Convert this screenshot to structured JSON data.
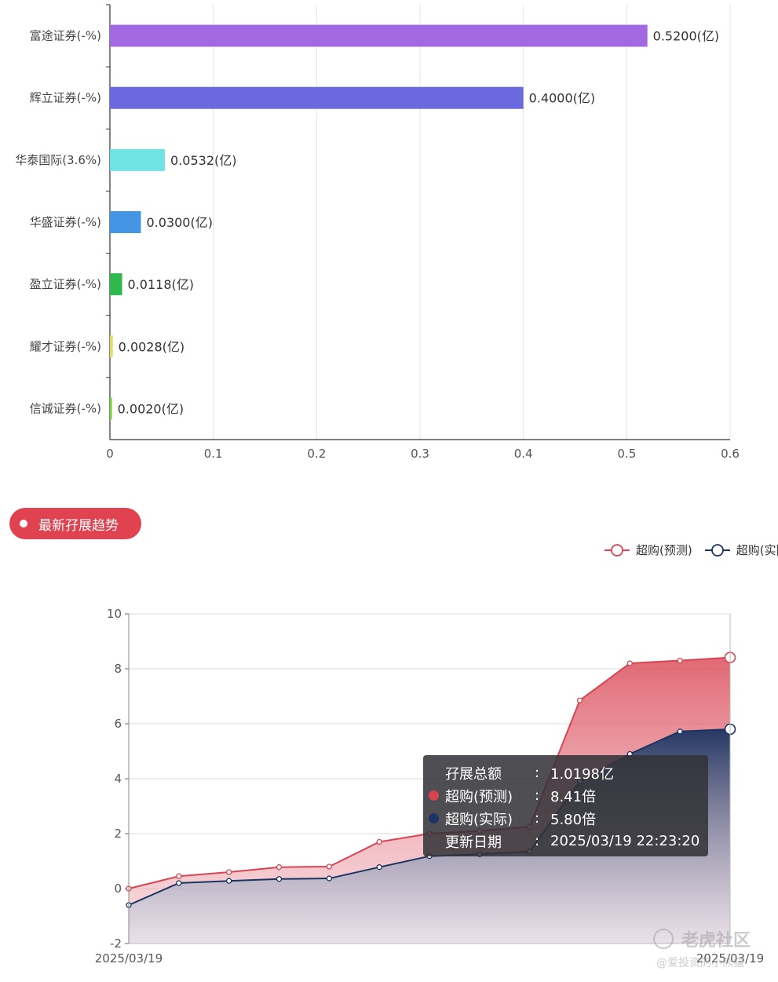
{
  "section_title": "最新孖展趋势",
  "legend": [
    {
      "label": "超购(预测)",
      "color": "#d94452"
    },
    {
      "label": "超购(实际)",
      "color": "#1b3461"
    }
  ],
  "tooltip": {
    "rows": [
      {
        "label": "孖展总额",
        "value": "1.0198亿",
        "dot": ""
      },
      {
        "label": "超购(预测)",
        "value": "8.41倍",
        "dot": "#d94452"
      },
      {
        "label": "超购(实际)",
        "value": "5.80倍",
        "dot": "#1b3461"
      },
      {
        "label": "更新日期",
        "value": "2025/03/19 22:23:20",
        "dot": ""
      }
    ]
  },
  "watermark": {
    "main": "老虎社区",
    "sub": "@爱投资的小熊猫"
  },
  "chart_data": [
    {
      "type": "bar",
      "orientation": "horizontal",
      "categories": [
        "富途证券(-%)",
        "辉立证券(-%)",
        "华泰国际(3.6%)",
        "华盛证券(-%)",
        "盈立证券(-%)",
        "耀才证券(-%)",
        "信诚证券(-%)"
      ],
      "values": [
        0.52,
        0.4,
        0.0532,
        0.03,
        0.0118,
        0.0028,
        0.002
      ],
      "value_labels": [
        "0.5200(亿)",
        "0.4000(亿)",
        "0.0532(亿)",
        "0.0300(亿)",
        "0.0118(亿)",
        "0.0028(亿)",
        "0.0020(亿)"
      ],
      "colors": [
        "#a369e3",
        "#6b69e0",
        "#6fe3e3",
        "#4495e3",
        "#2eb84d",
        "#e0dc69",
        "#7cd33a"
      ],
      "xlim": [
        0,
        0.6
      ],
      "xticks": [
        "0",
        "0.1",
        "0.2",
        "0.3",
        "0.4",
        "0.5",
        "0.6"
      ],
      "grid": true
    },
    {
      "type": "area",
      "x": [
        "2025/03/19",
        "",
        "",
        "",
        "",
        "",
        "",
        "",
        "",
        "",
        "",
        "",
        "2025/03/19"
      ],
      "xtick_labels": [
        "2025/03/19",
        "2025/03/19"
      ],
      "series": [
        {
          "name": "超购(预测)",
          "color": "#d94452",
          "values": [
            0.0,
            0.45,
            0.6,
            0.78,
            0.8,
            1.7,
            2.0,
            2.1,
            2.25,
            6.85,
            8.2,
            8.3,
            8.41
          ]
        },
        {
          "name": "超购(实际)",
          "color": "#1b3461",
          "values": [
            -0.6,
            0.2,
            0.28,
            0.35,
            0.37,
            0.78,
            1.18,
            1.25,
            1.35,
            3.9,
            4.9,
            5.72,
            5.8
          ]
        }
      ],
      "ylim": [
        -2,
        10
      ],
      "yticks": [
        "-2",
        "0",
        "2",
        "4",
        "6",
        "8",
        "10"
      ],
      "grid": true,
      "legend_position": "top-right"
    }
  ]
}
